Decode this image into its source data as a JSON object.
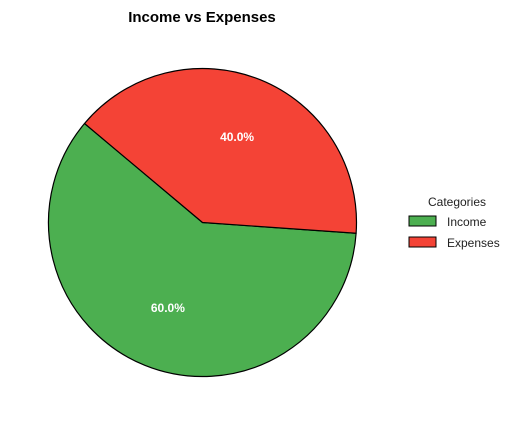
{
  "chart_data": {
    "type": "pie",
    "title": "Income vs Expenses",
    "categories": [
      "Income",
      "Expenses"
    ],
    "values": [
      60.0,
      40.0
    ],
    "percent_labels": [
      "60.0%",
      "40.0%"
    ],
    "colors": [
      "#4caf50",
      "#f44336"
    ],
    "edge_color": "#000000",
    "start_angle_deg": 140,
    "direction": "counterclockwise",
    "legend": {
      "title": "Categories",
      "placement": "right",
      "entries": [
        "Income",
        "Expenses"
      ]
    }
  }
}
